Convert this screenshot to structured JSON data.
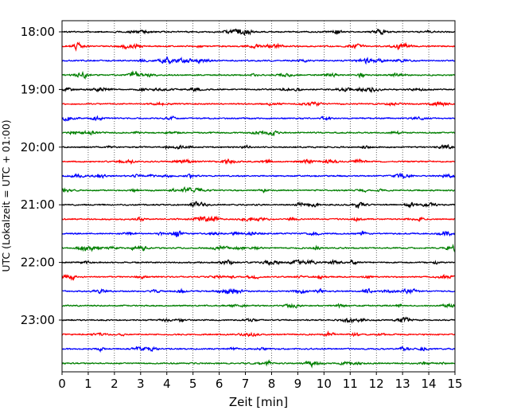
{
  "chart_data": {
    "type": "line",
    "title": "",
    "xlabel": "Zeit  [min]",
    "ylabel": "UTC (Lokalzeit = UTC + 01:00)",
    "xlim": [
      0,
      15
    ],
    "x_ticks": [
      "0",
      "1",
      "2",
      "3",
      "4",
      "5",
      "6",
      "7",
      "8",
      "9",
      "10",
      "11",
      "12",
      "13",
      "14",
      "15"
    ],
    "y_tick_labels": [
      "18:00",
      "19:00",
      "20:00",
      "21:00",
      "22:00",
      "23:00"
    ],
    "grid": "vertical-dotted",
    "trace_colors": [
      "#000000",
      "#ff0000",
      "#0000ff",
      "#007f00"
    ],
    "series": [
      {
        "start": "18:00",
        "color": "#000000"
      },
      {
        "start": "18:15",
        "color": "#ff0000"
      },
      {
        "start": "18:30",
        "color": "#0000ff"
      },
      {
        "start": "18:45",
        "color": "#007f00"
      },
      {
        "start": "19:00",
        "color": "#000000"
      },
      {
        "start": "19:15",
        "color": "#ff0000"
      },
      {
        "start": "19:30",
        "color": "#0000ff"
      },
      {
        "start": "19:45",
        "color": "#007f00"
      },
      {
        "start": "20:00",
        "color": "#000000"
      },
      {
        "start": "20:15",
        "color": "#ff0000"
      },
      {
        "start": "20:30",
        "color": "#0000ff"
      },
      {
        "start": "20:45",
        "color": "#007f00"
      },
      {
        "start": "21:00",
        "color": "#000000"
      },
      {
        "start": "21:15",
        "color": "#ff0000"
      },
      {
        "start": "21:30",
        "color": "#0000ff"
      },
      {
        "start": "21:45",
        "color": "#007f00"
      },
      {
        "start": "22:00",
        "color": "#000000"
      },
      {
        "start": "22:15",
        "color": "#ff0000"
      },
      {
        "start": "22:30",
        "color": "#0000ff"
      },
      {
        "start": "22:45",
        "color": "#007f00"
      },
      {
        "start": "23:00",
        "color": "#000000"
      },
      {
        "start": "23:15",
        "color": "#ff0000"
      },
      {
        "start": "23:30",
        "color": "#0000ff"
      },
      {
        "start": "23:45",
        "color": "#007f00"
      }
    ]
  }
}
